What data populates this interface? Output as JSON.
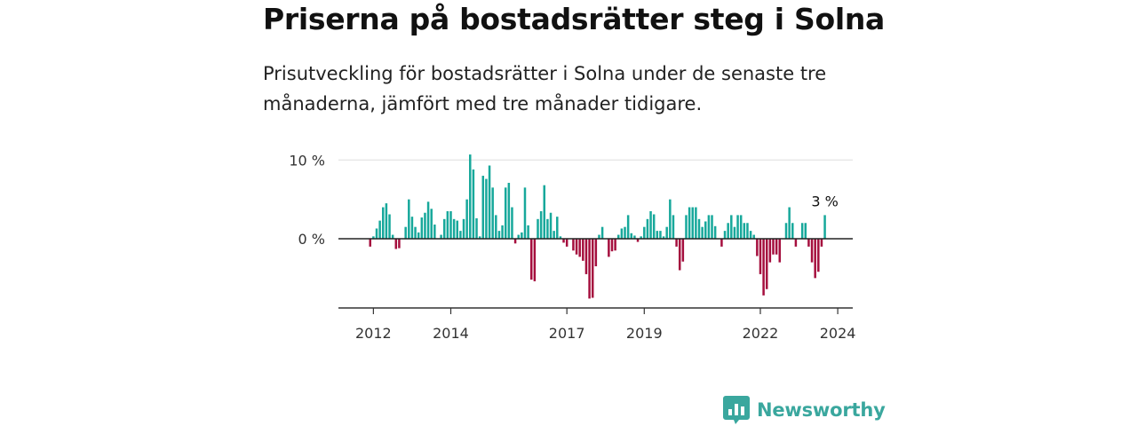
{
  "title": "Priserna på bostadsrätter steg i Solna",
  "subtitle": "Prisutveckling för bostadsrätter i Solna under de senaste tre månaderna, jämfört med tre månader tidigare.",
  "brand": {
    "name": "Newsworthy",
    "icon": "newsworthy-logo-icon",
    "color": "#3aa79e"
  },
  "colors": {
    "positive": "#17a89b",
    "negative": "#a50f3e",
    "grid": "#dddddd",
    "axis": "#333333"
  },
  "chart_data": {
    "type": "bar",
    "title": "Priserna på bostadsrätter steg i Solna",
    "xlabel": "",
    "ylabel": "",
    "ylim": [
      -8.7,
      11.5
    ],
    "grid": true,
    "y_ticks": [
      {
        "value": 0,
        "label": "0 %"
      },
      {
        "value": 10,
        "label": "10 %"
      }
    ],
    "x_ticks": [
      {
        "value": "2012-01",
        "label": "2012"
      },
      {
        "value": "2014-01",
        "label": "2014"
      },
      {
        "value": "2017-01",
        "label": "2017"
      },
      {
        "value": "2019-01",
        "label": "2019"
      },
      {
        "value": "2022-01",
        "label": "2022"
      },
      {
        "value": "2024-01",
        "label": "2024"
      }
    ],
    "x_start": "2011-09",
    "last_value_label": "3 %",
    "values": [
      0,
      0,
      0,
      -1,
      0.3,
      1.3,
      2.3,
      4,
      4.5,
      3.1,
      0.5,
      -1.3,
      -1.2,
      0,
      1.5,
      5,
      2.8,
      1.5,
      0.8,
      2.7,
      3.3,
      4.7,
      3.8,
      1.8,
      0,
      0.5,
      2.5,
      3.5,
      3.5,
      2.5,
      2.3,
      1,
      2.5,
      5,
      10.7,
      8.8,
      2.6,
      0.3,
      8,
      7.6,
      9.3,
      6.5,
      3,
      1,
      1.7,
      6.5,
      7.1,
      4,
      -0.6,
      0.5,
      0.8,
      6.5,
      1.7,
      -5.2,
      -5.4,
      2.5,
      3.5,
      6.8,
      2.5,
      3.3,
      1,
      2.8,
      0.3,
      -0.5,
      -1,
      0,
      -1.5,
      -2,
      -2.3,
      -2.8,
      -4.5,
      -7.6,
      -7.5,
      -3.5,
      0.5,
      1.5,
      0,
      -2.3,
      -1.6,
      -1.5,
      0.5,
      1.3,
      1.5,
      3,
      0.7,
      0.4,
      -0.4,
      0.3,
      1.5,
      2.5,
      3.5,
      3.1,
      1,
      1,
      0.3,
      1.5,
      5,
      3,
      -1,
      -4,
      -2.9,
      3,
      4,
      4,
      4,
      2.5,
      1.5,
      2.2,
      3,
      3,
      1.6,
      0,
      -1,
      1,
      2,
      3,
      1.5,
      3,
      3,
      2,
      2,
      1,
      0.5,
      -2.2,
      -4.5,
      -7.2,
      -6.4,
      -3,
      -2,
      -2,
      -3,
      0,
      2,
      4,
      2,
      -1,
      0,
      2,
      2,
      -1,
      -3,
      -5,
      -4.2,
      -1,
      3
    ]
  }
}
